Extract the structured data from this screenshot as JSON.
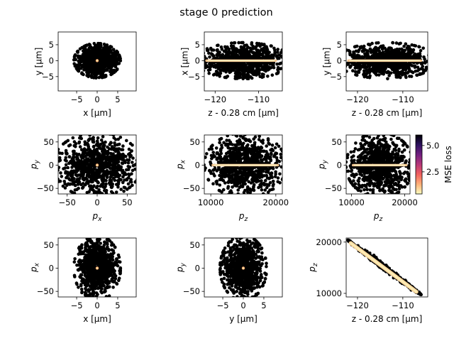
{
  "title": "stage 0 prediction",
  "colorbar": {
    "label": "MSE loss",
    "ticks": [
      2.5,
      5.0
    ],
    "range": [
      0.4,
      6.0
    ],
    "colormap": [
      "#fcfdbf",
      "#feb078",
      "#f1605d",
      "#b73779",
      "#721f81",
      "#2c115f",
      "#000004"
    ]
  },
  "chart_data": [
    {
      "type": "scatter",
      "xlabel": "x [μm]",
      "ylabel": "y [μm]",
      "xlim": [
        -9.5,
        9.5
      ],
      "ylim": [
        -9.5,
        9
      ],
      "xticks": [
        -5,
        0,
        5
      ],
      "yticks": [
        -5,
        0,
        5
      ],
      "cloud": {
        "center": [
          0,
          0
        ],
        "spread": [
          4.2,
          4.0
        ],
        "shape": "blob"
      },
      "highlight": {
        "shape": "dot",
        "center": [
          0,
          0
        ]
      }
    },
    {
      "type": "scatter",
      "xlabel": "z - 0.28 cm [μm]",
      "ylabel": "x [μm]",
      "xlim": [
        -122.5,
        -104.5
      ],
      "ylim": [
        -9.5,
        9
      ],
      "xticks": [
        -120,
        -110
      ],
      "yticks": [
        -5,
        0,
        5
      ],
      "cloud": {
        "center": [
          -113.5,
          0
        ],
        "spread": [
          8.2,
          4.2
        ],
        "shape": "blob"
      },
      "highlight": {
        "shape": "band",
        "from": [
          -122,
          0
        ],
        "to": [
          -106,
          0
        ]
      }
    },
    {
      "type": "scatter",
      "xlabel": "z - 0.28 cm [μm]",
      "ylabel": "y [μm]",
      "xlim": [
        -122.5,
        -104.5
      ],
      "ylim": [
        -9.5,
        9
      ],
      "xticks": [
        -120,
        -110
      ],
      "yticks": [
        -5,
        0,
        5
      ],
      "cloud": {
        "center": [
          -113.5,
          0
        ],
        "spread": [
          8.2,
          4.2
        ],
        "shape": "blob"
      },
      "highlight": {
        "shape": "band",
        "from": [
          -122,
          0
        ],
        "to": [
          -106,
          0
        ]
      }
    },
    {
      "type": "scatter",
      "xlabel": "p_x",
      "ylabel": "p_y",
      "xlim": [
        -65,
        65
      ],
      "ylim": [
        -62,
        65
      ],
      "xticks": [
        -50,
        0,
        50
      ],
      "yticks": [
        -50,
        0,
        50
      ],
      "cloud": {
        "center": [
          0,
          0
        ],
        "spread": [
          55,
          52
        ],
        "shape": "blob"
      },
      "highlight": {
        "shape": "dot",
        "center": [
          0,
          0
        ]
      }
    },
    {
      "type": "scatter",
      "xlabel": "p_z",
      "ylabel": "p_x",
      "xlim": [
        9000,
        21000
      ],
      "ylim": [
        -62,
        65
      ],
      "xticks": [
        10000,
        20000
      ],
      "yticks": [
        -50,
        0,
        50
      ],
      "cloud": {
        "center": [
          15300,
          0
        ],
        "spread": [
          4700,
          52
        ],
        "shape": "blob"
      },
      "highlight": {
        "shape": "band",
        "from": [
          10300,
          0
        ],
        "to": [
          20300,
          0
        ]
      }
    },
    {
      "type": "scatter",
      "xlabel": "p_z",
      "ylabel": "p_y",
      "xlim": [
        9000,
        21000
      ],
      "ylim": [
        -62,
        65
      ],
      "xticks": [
        10000,
        20000
      ],
      "yticks": [
        -50,
        0,
        50
      ],
      "cloud": {
        "center": [
          15300,
          0
        ],
        "spread": [
          4700,
          52
        ],
        "shape": "blob"
      },
      "highlight": {
        "shape": "band",
        "from": [
          10300,
          0
        ],
        "to": [
          20300,
          0
        ]
      }
    },
    {
      "type": "scatter",
      "xlabel": "x [μm]",
      "ylabel": "p_x",
      "xlim": [
        -9.5,
        9.5
      ],
      "ylim": [
        -62,
        65
      ],
      "xticks": [
        -5,
        0,
        5
      ],
      "yticks": [
        -50,
        0,
        50
      ],
      "cloud": {
        "center": [
          0,
          0
        ],
        "spread": [
          4.2,
          52
        ],
        "shape": "blob"
      },
      "highlight": {
        "shape": "dot",
        "center": [
          0,
          0
        ]
      }
    },
    {
      "type": "scatter",
      "xlabel": "y [μm]",
      "ylabel": "p_y",
      "xlim": [
        -9.5,
        9.5
      ],
      "ylim": [
        -62,
        65
      ],
      "xticks": [
        -5,
        0,
        5
      ],
      "yticks": [
        -50,
        0,
        50
      ],
      "cloud": {
        "center": [
          0,
          0
        ],
        "spread": [
          4.2,
          52
        ],
        "shape": "blob"
      },
      "highlight": {
        "shape": "dot",
        "center": [
          0,
          0
        ]
      }
    },
    {
      "type": "scatter",
      "xlabel": "z - 0.28 cm [μm]",
      "ylabel": "p_z",
      "xlim": [
        -122.5,
        -104.5
      ],
      "ylim": [
        9300,
        20800
      ],
      "xticks": [
        -120,
        -110
      ],
      "yticks": [
        10000,
        20000
      ],
      "cloud": {
        "shape": "diagonal",
        "from": [
          -122,
          20200
        ],
        "to": [
          -106,
          9800
        ]
      },
      "highlight": {
        "shape": "diagonal",
        "from": [
          -121.5,
          19800
        ],
        "to": [
          -107,
          10300
        ]
      }
    }
  ]
}
